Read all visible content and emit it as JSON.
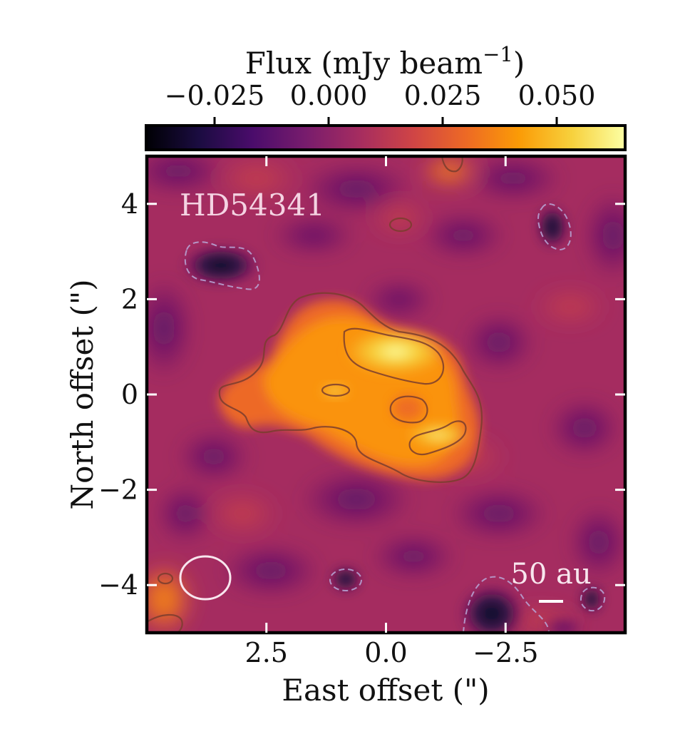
{
  "chart_data": {
    "type": "heatmap",
    "target_label": "HD54341",
    "colorbar": {
      "label": "Flux (mJy beam",
      "label_exponent": "−1",
      "label_close": ")",
      "ticks": [
        -0.025,
        0.0,
        0.025,
        0.05
      ],
      "tick_labels": [
        "−0.025",
        "0.000",
        "0.025",
        "0.050"
      ],
      "range": [
        -0.04,
        0.065
      ],
      "colormap": "inferno",
      "colors": [
        "#000004",
        "#1b0c41",
        "#4a0c6b",
        "#781c6d",
        "#a52c60",
        "#cf4446",
        "#ed6925",
        "#fb9b06",
        "#f7d13d",
        "#fcffa4"
      ]
    },
    "xaxis": {
      "label": "East offset (\")",
      "range": [
        5,
        -5
      ],
      "ticks": [
        2.5,
        0.0,
        -2.5
      ],
      "tick_labels": [
        "2.5",
        "0.0",
        "−2.5"
      ]
    },
    "yaxis": {
      "label": "North offset (\")",
      "range": [
        -5,
        5
      ],
      "ticks": [
        4,
        2,
        0,
        -2,
        -4
      ],
      "tick_labels": [
        "4",
        "2",
        "0",
        "−2",
        "−4"
      ]
    },
    "emission_peak": {
      "x": -0.3,
      "y": 0.9,
      "value": 0.058
    },
    "scale_bar": {
      "label": "50 au"
    },
    "beam": {
      "major_arcsec": 1.1,
      "minor_arcsec": 0.95
    }
  }
}
